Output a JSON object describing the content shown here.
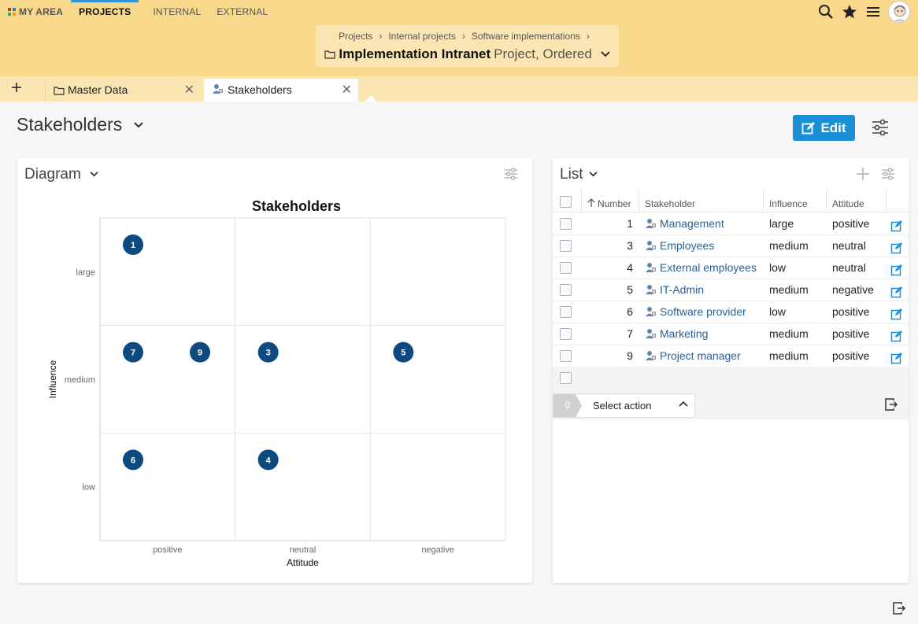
{
  "nav": {
    "my_area": "MY AREA",
    "projects": "PROJECTS",
    "internal": "INTERNAL",
    "external": "EXTERNAL"
  },
  "breadcrumb": {
    "items": [
      "Projects",
      "Internal projects",
      "Software implementations"
    ],
    "separator": "›",
    "title": "Implementation Intranet",
    "subtitle": "Project, Ordered"
  },
  "tabs": {
    "add": "+",
    "items": [
      {
        "label": "Master Data"
      },
      {
        "label": "Stakeholders"
      }
    ]
  },
  "page": {
    "title": "Stakeholders",
    "edit_label": "Edit"
  },
  "diagram": {
    "panel_title": "Diagram"
  },
  "chart_data": {
    "type": "scatter",
    "title": "Stakeholders",
    "xlabel": "Attitude",
    "ylabel": "Influence",
    "x_categories": [
      "positive",
      "neutral",
      "negative"
    ],
    "y_categories": [
      "low",
      "medium",
      "large"
    ],
    "points": [
      {
        "label": "1",
        "x": "positive",
        "y": "large"
      },
      {
        "label": "7",
        "x": "positive",
        "y": "medium"
      },
      {
        "label": "9",
        "x": "positive",
        "y": "medium"
      },
      {
        "label": "3",
        "x": "neutral",
        "y": "medium"
      },
      {
        "label": "5",
        "x": "negative",
        "y": "medium"
      },
      {
        "label": "6",
        "x": "positive",
        "y": "low"
      },
      {
        "label": "4",
        "x": "neutral",
        "y": "low"
      }
    ],
    "marker_color": "#0d4a80",
    "grid": true
  },
  "list": {
    "panel_title": "List",
    "columns": [
      "Number",
      "Stakeholder",
      "Influence",
      "Attitude"
    ],
    "rows": [
      {
        "number": "1",
        "stakeholder": "Management",
        "influence": "large",
        "attitude": "positive"
      },
      {
        "number": "3",
        "stakeholder": "Employees",
        "influence": "medium",
        "attitude": "neutral"
      },
      {
        "number": "4",
        "stakeholder": "External employees",
        "influence": "low",
        "attitude": "neutral"
      },
      {
        "number": "5",
        "stakeholder": "IT-Admin",
        "influence": "medium",
        "attitude": "negative"
      },
      {
        "number": "6",
        "stakeholder": "Software provider",
        "influence": "low",
        "attitude": "positive"
      },
      {
        "number": "7",
        "stakeholder": "Marketing",
        "influence": "medium",
        "attitude": "positive"
      },
      {
        "number": "9",
        "stakeholder": "Project manager",
        "influence": "medium",
        "attitude": "positive"
      }
    ],
    "selected_count": "0",
    "action_label": "Select action"
  },
  "colors": {
    "header_bg": "#f8d98c",
    "tabbar_bg": "#fbe6b3",
    "accent": "#1a8fd6",
    "link": "#2a5f93",
    "marker": "#0d4a80"
  }
}
